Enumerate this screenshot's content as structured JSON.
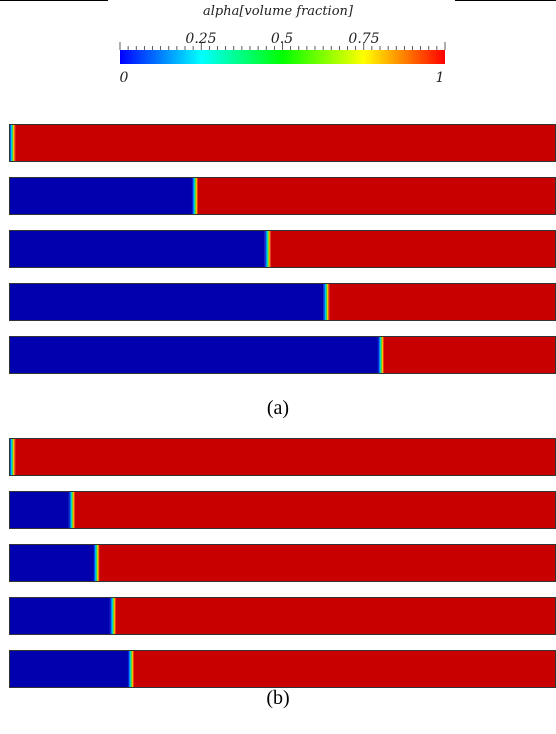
{
  "colorbar": {
    "title": "alpha[volume fraction]",
    "ticks": [
      "0.25",
      "0.5",
      "0.75"
    ],
    "min_label": "0",
    "max_label": "1",
    "colormap": [
      "#0000ff",
      "#00ffff",
      "#00ff00",
      "#ffff00",
      "#ff0000"
    ]
  },
  "colors": {
    "phase_low": "#0000ae",
    "phase_high": "#c90000"
  },
  "panels": [
    {
      "caption": "(a)",
      "interface_positions": [
        0.006,
        0.34,
        0.473,
        0.58,
        0.68
      ]
    },
    {
      "caption": "(b)",
      "interface_positions": [
        0.006,
        0.115,
        0.16,
        0.19,
        0.223
      ]
    }
  ]
}
